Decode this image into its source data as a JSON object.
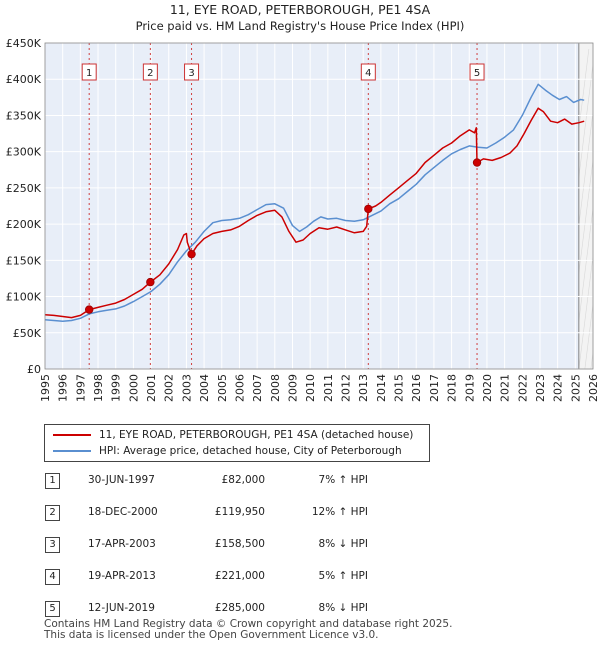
{
  "chart_data": {
    "type": "line",
    "title": "11, EYE ROAD, PETERBOROUGH, PE1 4SA",
    "subtitle": "Price paid vs. HM Land Registry's House Price Index (HPI)",
    "xlim": [
      1995,
      2026
    ],
    "ylim": [
      0,
      450000
    ],
    "x_ticks": [
      1995,
      1996,
      1997,
      1998,
      1999,
      2000,
      2001,
      2002,
      2003,
      2004,
      2005,
      2006,
      2007,
      2008,
      2009,
      2010,
      2011,
      2012,
      2013,
      2014,
      2015,
      2016,
      2017,
      2018,
      2019,
      2020,
      2021,
      2022,
      2023,
      2024,
      2025,
      2026
    ],
    "y_ticks": [
      0,
      50000,
      100000,
      150000,
      200000,
      250000,
      300000,
      350000,
      400000,
      450000
    ],
    "y_tick_labels": [
      "£0",
      "£50K",
      "£100K",
      "£150K",
      "£200K",
      "£250K",
      "£300K",
      "£350K",
      "£400K",
      "£450K"
    ],
    "forecast_start": 2025.2,
    "series": [
      {
        "name": "11, EYE ROAD, PETERBOROUGH, PE1 4SA (detached house)",
        "color": "#cc0000",
        "points": [
          [
            1995,
            75000
          ],
          [
            1995.5,
            74000
          ],
          [
            1996,
            72500
          ],
          [
            1996.5,
            71000
          ],
          [
            1997,
            74000
          ],
          [
            1997.5,
            82000
          ],
          [
            1998,
            85000
          ],
          [
            1998.5,
            88000
          ],
          [
            1999,
            91000
          ],
          [
            1999.5,
            96000
          ],
          [
            2000,
            103000
          ],
          [
            2000.5,
            110000
          ],
          [
            2000.96,
            119950
          ],
          [
            2001.5,
            130000
          ],
          [
            2002,
            145000
          ],
          [
            2002.5,
            165000
          ],
          [
            2002.85,
            185000
          ],
          [
            2003.0,
            187000
          ],
          [
            2003.05,
            175000
          ],
          [
            2003.29,
            158500
          ],
          [
            2003.6,
            170000
          ],
          [
            2004,
            180000
          ],
          [
            2004.5,
            187000
          ],
          [
            2005,
            190000
          ],
          [
            2005.5,
            192000
          ],
          [
            2006,
            197000
          ],
          [
            2006.5,
            205000
          ],
          [
            2007,
            212000
          ],
          [
            2007.5,
            217000
          ],
          [
            2008,
            219000
          ],
          [
            2008.4,
            210000
          ],
          [
            2008.8,
            190000
          ],
          [
            2009.2,
            175000
          ],
          [
            2009.6,
            178000
          ],
          [
            2010,
            187000
          ],
          [
            2010.5,
            195000
          ],
          [
            2011,
            193000
          ],
          [
            2011.5,
            196000
          ],
          [
            2012,
            192000
          ],
          [
            2012.5,
            188000
          ],
          [
            2013.0,
            190000
          ],
          [
            2013.2,
            197000
          ],
          [
            2013.29,
            221000
          ],
          [
            2013.7,
            225000
          ],
          [
            2014,
            230000
          ],
          [
            2014.5,
            240000
          ],
          [
            2015,
            250000
          ],
          [
            2015.5,
            260000
          ],
          [
            2016,
            270000
          ],
          [
            2016.5,
            285000
          ],
          [
            2017,
            295000
          ],
          [
            2017.5,
            305000
          ],
          [
            2018,
            312000
          ],
          [
            2018.5,
            322000
          ],
          [
            2019,
            330000
          ],
          [
            2019.3,
            326000
          ],
          [
            2019.4,
            333000
          ],
          [
            2019.44,
            285000
          ],
          [
            2019.8,
            290000
          ],
          [
            2020.3,
            288000
          ],
          [
            2020.8,
            292000
          ],
          [
            2021.3,
            298000
          ],
          [
            2021.7,
            308000
          ],
          [
            2022.1,
            325000
          ],
          [
            2022.5,
            343000
          ],
          [
            2022.9,
            360000
          ],
          [
            2023.2,
            355000
          ],
          [
            2023.6,
            342000
          ],
          [
            2024.0,
            340000
          ],
          [
            2024.4,
            345000
          ],
          [
            2024.8,
            338000
          ],
          [
            2025.2,
            340000
          ],
          [
            2025.5,
            342000
          ]
        ]
      },
      {
        "name": "HPI: Average price, detached house, City of Peterborough",
        "color": "#5a8fd0",
        "points": [
          [
            1995,
            68000
          ],
          [
            1995.5,
            67000
          ],
          [
            1996,
            66000
          ],
          [
            1996.5,
            67000
          ],
          [
            1997,
            70000
          ],
          [
            1997.5,
            76000
          ],
          [
            1998,
            79000
          ],
          [
            1998.5,
            81000
          ],
          [
            1999,
            83000
          ],
          [
            1999.5,
            87000
          ],
          [
            2000,
            93000
          ],
          [
            2000.5,
            100000
          ],
          [
            2001,
            107000
          ],
          [
            2001.5,
            117000
          ],
          [
            2002,
            130000
          ],
          [
            2002.5,
            148000
          ],
          [
            2003,
            163000
          ],
          [
            2003.5,
            175000
          ],
          [
            2004,
            190000
          ],
          [
            2004.5,
            202000
          ],
          [
            2005,
            205000
          ],
          [
            2005.5,
            206000
          ],
          [
            2006,
            208000
          ],
          [
            2006.5,
            213000
          ],
          [
            2007,
            220000
          ],
          [
            2007.5,
            227000
          ],
          [
            2008,
            228000
          ],
          [
            2008.5,
            222000
          ],
          [
            2009,
            198000
          ],
          [
            2009.4,
            190000
          ],
          [
            2009.8,
            196000
          ],
          [
            2010.2,
            204000
          ],
          [
            2010.6,
            210000
          ],
          [
            2011,
            207000
          ],
          [
            2011.5,
            208000
          ],
          [
            2012,
            205000
          ],
          [
            2012.5,
            204000
          ],
          [
            2013,
            206000
          ],
          [
            2013.5,
            212000
          ],
          [
            2014,
            218000
          ],
          [
            2014.5,
            228000
          ],
          [
            2015,
            235000
          ],
          [
            2015.5,
            245000
          ],
          [
            2016,
            255000
          ],
          [
            2016.5,
            268000
          ],
          [
            2017,
            278000
          ],
          [
            2017.5,
            288000
          ],
          [
            2018,
            297000
          ],
          [
            2018.5,
            303000
          ],
          [
            2019,
            308000
          ],
          [
            2019.5,
            306000
          ],
          [
            2020,
            305000
          ],
          [
            2020.5,
            312000
          ],
          [
            2021,
            320000
          ],
          [
            2021.5,
            330000
          ],
          [
            2022,
            350000
          ],
          [
            2022.5,
            375000
          ],
          [
            2022.9,
            393000
          ],
          [
            2023.3,
            385000
          ],
          [
            2023.7,
            378000
          ],
          [
            2024.1,
            372000
          ],
          [
            2024.5,
            376000
          ],
          [
            2024.9,
            368000
          ],
          [
            2025.3,
            372000
          ],
          [
            2025.5,
            371000
          ]
        ]
      }
    ],
    "sales": [
      {
        "num": "1",
        "x": 1997.5,
        "value": 82000
      },
      {
        "num": "2",
        "x": 2000.96,
        "value": 119950
      },
      {
        "num": "3",
        "x": 2003.29,
        "value": 158500
      },
      {
        "num": "4",
        "x": 2013.29,
        "value": 221000
      },
      {
        "num": "5",
        "x": 2019.44,
        "value": 285000
      }
    ]
  },
  "legend": [
    {
      "label": "11, EYE ROAD, PETERBOROUGH, PE1 4SA (detached house)",
      "color": "#cc0000"
    },
    {
      "label": "HPI: Average price, detached house, City of Peterborough",
      "color": "#5a8fd0"
    }
  ],
  "transactions": [
    {
      "num": "1",
      "date": "30-JUN-1997",
      "price": "£82,000",
      "hpi": "7% ↑ HPI"
    },
    {
      "num": "2",
      "date": "18-DEC-2000",
      "price": "£119,950",
      "hpi": "12% ↑ HPI"
    },
    {
      "num": "3",
      "date": "17-APR-2003",
      "price": "£158,500",
      "hpi": "8% ↓ HPI"
    },
    {
      "num": "4",
      "date": "19-APR-2013",
      "price": "£221,000",
      "hpi": "5% ↑ HPI"
    },
    {
      "num": "5",
      "date": "12-JUN-2019",
      "price": "£285,000",
      "hpi": "8% ↓ HPI"
    }
  ],
  "footer": {
    "line1": "Contains HM Land Registry data © Crown copyright and database right 2025.",
    "line2": "This data is licensed under the Open Government Licence v3.0."
  }
}
